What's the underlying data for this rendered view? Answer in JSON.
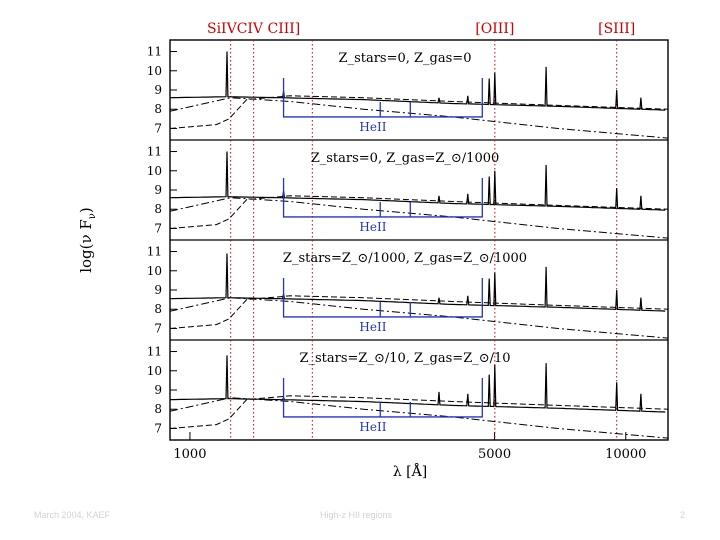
{
  "chart_data": {
    "type": "line",
    "x_scale": "log",
    "xlim": [
      900,
      12500
    ],
    "xlabel": "λ [Å]",
    "x_ticks": [
      1000,
      5000,
      10000
    ],
    "x_tick_labels": [
      "1000",
      "5000",
      "10000"
    ],
    "ylabel": "log(ν F",
    "ylabel_sub": "ν",
    "ylabel_close": ")",
    "y_ticks": [
      7,
      8,
      9,
      10,
      11
    ],
    "y_tick_labels": [
      "7",
      "8",
      "9",
      "10",
      "11"
    ],
    "ylim": [
      6.4,
      11.6
    ],
    "line_labels": [
      {
        "text": "SiIVCIV CIII]",
        "wavelength": 1400,
        "color": "#cc0000"
      },
      {
        "text": "[OIII]",
        "wavelength": 5007,
        "color": "#cc0000"
      },
      {
        "text": "[SIII]",
        "wavelength": 9532,
        "color": "#cc0000"
      }
    ],
    "red_dotted_lines": [
      1240,
      1400,
      1909,
      5007,
      9532
    ],
    "heii_color": "#2233cc",
    "panels": [
      {
        "label": "Z_stars=0, Z_gas=0",
        "heii_label": "HeII",
        "heii_lines": [
          1640,
          3203,
          4686
        ],
        "heii_mid_lines": [
          2733,
          3203
        ],
        "heii_bracket": [
          1640,
          4686,
          7.6
        ],
        "solid_continuum": [
          [
            900,
            8.6
          ],
          [
            1220,
            8.65
          ],
          [
            1600,
            8.6
          ],
          [
            2500,
            8.5
          ],
          [
            4000,
            8.3
          ],
          [
            7000,
            8.15
          ],
          [
            12500,
            7.95
          ]
        ],
        "dash_rise": [
          [
            900,
            7.0
          ],
          [
            1150,
            7.2
          ],
          [
            1230,
            7.5
          ],
          [
            1350,
            8.5
          ],
          [
            1700,
            8.7
          ],
          [
            2500,
            8.6
          ],
          [
            4000,
            8.4
          ],
          [
            7000,
            8.2
          ],
          [
            12500,
            8.0
          ]
        ],
        "dash_fall": [
          [
            900,
            7.9
          ],
          [
            1240,
            8.6
          ],
          [
            1700,
            8.4
          ],
          [
            2500,
            8.0
          ],
          [
            4000,
            7.6
          ],
          [
            7000,
            7.0
          ],
          [
            12500,
            6.5
          ]
        ],
        "emission_peaks": [
          [
            1216,
            11.0
          ],
          [
            1640,
            8.95
          ],
          [
            3727,
            8.6
          ],
          [
            4340,
            8.7
          ],
          [
            4861,
            9.6
          ],
          [
            5007,
            9.9
          ],
          [
            6563,
            10.2
          ],
          [
            9532,
            9.0
          ],
          [
            10830,
            8.6
          ]
        ]
      },
      {
        "label": "Z_stars=0, Z_gas=Z_⊙/1000",
        "heii_label": "HeII",
        "heii_lines": [
          1640,
          3203,
          4686
        ],
        "heii_mid_lines": [
          2733,
          3203
        ],
        "heii_bracket": [
          1640,
          4686,
          7.6
        ],
        "solid_continuum": [
          [
            900,
            8.6
          ],
          [
            1220,
            8.65
          ],
          [
            1600,
            8.6
          ],
          [
            2500,
            8.5
          ],
          [
            4000,
            8.3
          ],
          [
            7000,
            8.15
          ],
          [
            12500,
            7.95
          ]
        ],
        "dash_rise": [
          [
            900,
            7.0
          ],
          [
            1150,
            7.2
          ],
          [
            1230,
            7.5
          ],
          [
            1350,
            8.5
          ],
          [
            1700,
            8.7
          ],
          [
            2500,
            8.6
          ],
          [
            4000,
            8.4
          ],
          [
            7000,
            8.2
          ],
          [
            12500,
            8.0
          ]
        ],
        "dash_fall": [
          [
            900,
            7.9
          ],
          [
            1240,
            8.6
          ],
          [
            1700,
            8.4
          ],
          [
            2500,
            8.0
          ],
          [
            4000,
            7.6
          ],
          [
            7000,
            7.0
          ],
          [
            12500,
            6.5
          ]
        ],
        "emission_peaks": [
          [
            1216,
            11.0
          ],
          [
            1640,
            8.95
          ],
          [
            3727,
            8.7
          ],
          [
            4340,
            8.8
          ],
          [
            4861,
            9.7
          ],
          [
            5007,
            10.0
          ],
          [
            6563,
            10.3
          ],
          [
            9532,
            9.1
          ],
          [
            10830,
            8.7
          ]
        ]
      },
      {
        "label": "Z_stars=Z_⊙/1000, Z_gas=Z_⊙/1000",
        "heii_label": "HeII",
        "heii_lines": [
          1640,
          3203,
          4686
        ],
        "heii_mid_lines": [
          2733,
          3203
        ],
        "heii_bracket": [
          1640,
          4686,
          7.6
        ],
        "solid_continuum": [
          [
            900,
            8.55
          ],
          [
            1220,
            8.6
          ],
          [
            1600,
            8.55
          ],
          [
            2500,
            8.45
          ],
          [
            4000,
            8.25
          ],
          [
            7000,
            8.1
          ],
          [
            12500,
            7.9
          ]
        ],
        "dash_rise": [
          [
            900,
            7.0
          ],
          [
            1150,
            7.2
          ],
          [
            1230,
            7.5
          ],
          [
            1350,
            8.5
          ],
          [
            1700,
            8.7
          ],
          [
            2500,
            8.6
          ],
          [
            4000,
            8.4
          ],
          [
            7000,
            8.2
          ],
          [
            12500,
            8.0
          ]
        ],
        "dash_fall": [
          [
            900,
            7.9
          ],
          [
            1240,
            8.6
          ],
          [
            1700,
            8.4
          ],
          [
            2500,
            8.0
          ],
          [
            4000,
            7.6
          ],
          [
            7000,
            7.0
          ],
          [
            12500,
            6.5
          ]
        ],
        "emission_peaks": [
          [
            1216,
            10.9
          ],
          [
            1640,
            8.8
          ],
          [
            3727,
            8.6
          ],
          [
            4340,
            8.7
          ],
          [
            4861,
            9.6
          ],
          [
            5007,
            9.9
          ],
          [
            6563,
            10.2
          ],
          [
            9532,
            9.0
          ],
          [
            10830,
            8.6
          ]
        ]
      },
      {
        "label": "Z_stars=Z_⊙/10, Z_gas=Z_⊙/10",
        "heii_label": "HeII",
        "heii_lines": [
          1640,
          3203,
          4686
        ],
        "heii_mid_lines": [
          2733,
          3203
        ],
        "heii_bracket": [
          1640,
          4686,
          7.6
        ],
        "solid_continuum": [
          [
            900,
            8.5
          ],
          [
            1220,
            8.55
          ],
          [
            1600,
            8.5
          ],
          [
            2500,
            8.4
          ],
          [
            4000,
            8.2
          ],
          [
            7000,
            8.05
          ],
          [
            12500,
            7.85
          ]
        ],
        "dash_rise": [
          [
            900,
            7.0
          ],
          [
            1150,
            7.2
          ],
          [
            1230,
            7.5
          ],
          [
            1350,
            8.5
          ],
          [
            1700,
            8.7
          ],
          [
            2500,
            8.6
          ],
          [
            4000,
            8.4
          ],
          [
            7000,
            8.2
          ],
          [
            12500,
            8.0
          ]
        ],
        "dash_fall": [
          [
            900,
            7.9
          ],
          [
            1240,
            8.6
          ],
          [
            1700,
            8.4
          ],
          [
            2500,
            8.0
          ],
          [
            4000,
            7.6
          ],
          [
            7000,
            7.0
          ],
          [
            12500,
            6.5
          ]
        ],
        "emission_peaks": [
          [
            1216,
            10.8
          ],
          [
            1640,
            8.6
          ],
          [
            3727,
            8.9
          ],
          [
            4340,
            8.8
          ],
          [
            4861,
            9.8
          ],
          [
            5007,
            10.3
          ],
          [
            6563,
            10.4
          ],
          [
            9532,
            9.4
          ],
          [
            10830,
            8.8
          ]
        ]
      }
    ]
  },
  "footer": {
    "left": "March 2004, KAEF",
    "center": "High-z HII regions",
    "right": "2"
  }
}
